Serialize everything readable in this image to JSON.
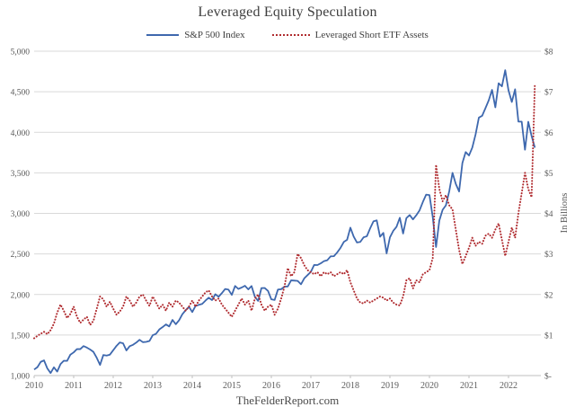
{
  "header": {
    "title": "Leveraged Equity Speculation"
  },
  "legend": {
    "items": [
      {
        "label": "S&P 500 Index",
        "color": "#3e68ae",
        "style": "solid"
      },
      {
        "label": "Leveraged Short ETF Assets",
        "color": "#b02c30",
        "style": "dotted"
      }
    ]
  },
  "footer": {
    "site": "TheFelderReport.com"
  },
  "colors": {
    "sp500_line": "#3e68ae",
    "etf_line": "#b02c30",
    "gridline": "#d9d9d9",
    "axis_line": "#bfbfbf",
    "tick_text": "#595959",
    "title_text": "#3d3d3d"
  },
  "chart_data": {
    "type": "line",
    "title": "Leveraged Equity Speculation",
    "x_unit": "monthly",
    "x_start": "2010-01",
    "x_end": "2022-09",
    "x_tick_labels": [
      "2010",
      "2011",
      "2012",
      "2013",
      "2014",
      "2015",
      "2016",
      "2017",
      "2018",
      "2019",
      "2020",
      "2021",
      "2022"
    ],
    "grid": true,
    "legend_position": "top",
    "left_axis": {
      "min": 1000,
      "max": 5000,
      "step": 500,
      "tick_labels": [
        "1,000",
        "1,500",
        "2,000",
        "2,500",
        "3,000",
        "3,500",
        "4,000",
        "4,500",
        "5,000"
      ]
    },
    "right_axis": {
      "min": 0,
      "max": 8,
      "step": 1,
      "tick_labels": [
        "$-",
        "$1",
        "$2",
        "$3",
        "$4",
        "$5",
        "$6",
        "$7",
        "$8"
      ],
      "title": "In Billions"
    },
    "series": [
      {
        "name": "S&P 500 Index",
        "axis": "left",
        "color": "#3e68ae",
        "line_style": "solid",
        "values": [
          1074,
          1104,
          1169,
          1187,
          1089,
          1031,
          1102,
          1049,
          1141,
          1183,
          1181,
          1258,
          1286,
          1327,
          1326,
          1364,
          1345,
          1321,
          1292,
          1219,
          1131,
          1253,
          1247,
          1258,
          1312,
          1366,
          1408,
          1398,
          1310,
          1362,
          1379,
          1407,
          1441,
          1412,
          1416,
          1426,
          1498,
          1515,
          1569,
          1598,
          1631,
          1606,
          1686,
          1633,
          1682,
          1757,
          1806,
          1848,
          1783,
          1859,
          1872,
          1884,
          1924,
          1960,
          1931,
          2003,
          1972,
          2018,
          2068,
          2059,
          1995,
          2105,
          2068,
          2086,
          2107,
          2063,
          2104,
          1972,
          1920,
          2079,
          2080,
          2044,
          1940,
          1932,
          2060,
          2065,
          2097,
          2099,
          2174,
          2171,
          2168,
          2126,
          2199,
          2239,
          2279,
          2364,
          2363,
          2384,
          2412,
          2423,
          2470,
          2472,
          2519,
          2575,
          2648,
          2674,
          2824,
          2714,
          2641,
          2648,
          2705,
          2718,
          2816,
          2902,
          2914,
          2712,
          2760,
          2507,
          2704,
          2784,
          2834,
          2946,
          2752,
          2942,
          2980,
          2926,
          2977,
          3038,
          3141,
          3231,
          3226,
          2954,
          2585,
          2912,
          3044,
          3100,
          3271,
          3500,
          3363,
          3270,
          3622,
          3756,
          3714,
          3811,
          3973,
          4181,
          4204,
          4298,
          4395,
          4523,
          4308,
          4605,
          4567,
          4766,
          4516,
          4374,
          4530,
          4132,
          4132,
          3785,
          4130,
          3955,
          3810
        ]
      },
      {
        "name": "Leveraged Short ETF Assets",
        "axis": "right",
        "color": "#b02c30",
        "line_style": "dotted",
        "values": [
          0.92,
          0.98,
          1.03,
          1.08,
          1.02,
          1.12,
          1.28,
          1.55,
          1.75,
          1.6,
          1.42,
          1.52,
          1.7,
          1.45,
          1.3,
          1.38,
          1.45,
          1.25,
          1.35,
          1.65,
          1.95,
          1.88,
          1.7,
          1.82,
          1.65,
          1.5,
          1.58,
          1.7,
          1.95,
          1.85,
          1.7,
          1.8,
          1.95,
          2.0,
          1.85,
          1.72,
          1.95,
          1.8,
          1.65,
          1.75,
          1.6,
          1.8,
          1.7,
          1.85,
          1.8,
          1.7,
          1.6,
          1.7,
          1.85,
          1.7,
          1.85,
          1.95,
          2.05,
          2.1,
          1.95,
          1.85,
          1.9,
          1.75,
          1.65,
          1.55,
          1.45,
          1.6,
          1.75,
          1.9,
          1.75,
          1.85,
          1.6,
          1.9,
          2.0,
          1.75,
          1.6,
          1.7,
          1.75,
          1.5,
          1.65,
          1.9,
          2.2,
          2.65,
          2.45,
          2.55,
          3.0,
          2.9,
          2.72,
          2.6,
          2.55,
          2.5,
          2.55,
          2.45,
          2.55,
          2.5,
          2.55,
          2.45,
          2.5,
          2.55,
          2.5,
          2.6,
          2.3,
          2.1,
          1.9,
          1.8,
          1.78,
          1.85,
          1.8,
          1.85,
          1.9,
          1.95,
          1.92,
          1.85,
          1.9,
          1.8,
          1.75,
          1.73,
          1.95,
          2.35,
          2.4,
          2.15,
          2.35,
          2.3,
          2.5,
          2.55,
          2.6,
          2.9,
          5.2,
          4.6,
          4.3,
          4.45,
          4.2,
          4.1,
          3.6,
          3.1,
          2.75,
          2.95,
          3.15,
          3.4,
          3.2,
          3.3,
          3.25,
          3.45,
          3.5,
          3.4,
          3.6,
          3.75,
          3.35,
          2.95,
          3.3,
          3.65,
          3.4,
          4.0,
          4.5,
          5.0,
          4.6,
          4.4,
          7.2
        ]
      }
    ]
  }
}
